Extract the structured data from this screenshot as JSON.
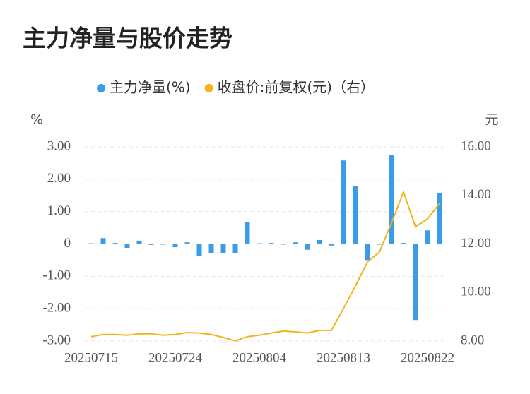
{
  "chart_data": {
    "type": "bar-line",
    "title": "主力净量与股价走势",
    "y_unit": "%",
    "y2_unit": "元",
    "categories": [
      "20250715",
      null,
      null,
      null,
      null,
      null,
      null,
      "20250724",
      null,
      null,
      null,
      null,
      null,
      null,
      "20250804",
      null,
      null,
      null,
      null,
      null,
      null,
      "20250813",
      null,
      null,
      null,
      null,
      null,
      null,
      "20250822",
      null
    ],
    "series": [
      {
        "name": "主力净量(%)",
        "type": "bar",
        "color": "#3a9ce8",
        "values": [
          0.02,
          0.18,
          0.03,
          -0.12,
          0.1,
          -0.03,
          -0.02,
          -0.1,
          0.05,
          -0.38,
          -0.28,
          -0.28,
          -0.28,
          0.67,
          0.02,
          0.03,
          -0.02,
          0.05,
          -0.18,
          0.12,
          -0.05,
          2.58,
          1.8,
          -0.5,
          0,
          2.75,
          0.03,
          -2.35,
          0.42,
          1.57
        ]
      },
      {
        "name": "收盘价:前复权(元)（右）",
        "type": "line",
        "axis": "y2",
        "color": "#f5b31a",
        "values": [
          8.18,
          8.27,
          8.27,
          8.24,
          8.3,
          8.3,
          8.24,
          8.27,
          8.35,
          8.33,
          8.27,
          8.15,
          8.01,
          8.18,
          8.24,
          8.33,
          8.41,
          8.38,
          8.33,
          8.44,
          8.44,
          9.34,
          10.27,
          11.26,
          11.67,
          12.86,
          14.14,
          12.71,
          13.03,
          13.67
        ]
      }
    ],
    "ylim": [
      -3,
      3
    ],
    "yticks": [
      {
        "value": 3,
        "label": "3.00"
      },
      {
        "value": 2,
        "label": "2.00"
      },
      {
        "value": 1,
        "label": "1.00"
      },
      0,
      {
        "value": -1,
        "label": "-1.00"
      },
      {
        "value": -2,
        "label": "-2.00"
      },
      {
        "value": -3,
        "label": "-3.00"
      }
    ],
    "y2lim": [
      8,
      16
    ],
    "y2ticks": [
      {
        "value": 16,
        "label": "16.00"
      },
      {
        "value": 14,
        "label": "14.00"
      },
      {
        "value": 12,
        "label": "12.00"
      },
      {
        "value": 10,
        "label": "10.00"
      },
      {
        "value": 8,
        "label": "8.00"
      }
    ],
    "grid": true
  }
}
